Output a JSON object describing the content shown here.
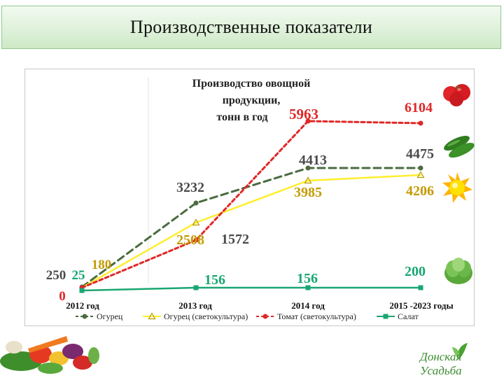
{
  "header": {
    "title": "Производственные показатели"
  },
  "chart_data": {
    "type": "line",
    "title": "Производство овощной продукции, тонн в год",
    "categories": [
      "2012 год",
      "2013 год",
      "2014 год",
      "2015 -2023 годы"
    ],
    "series": [
      {
        "name": "Огурец",
        "color": "#4a6b3f",
        "marker": "circle",
        "dash": "dashed",
        "values": [
          250,
          3232,
          4413,
          4475
        ]
      },
      {
        "name": "Огурец (светокультура)",
        "color": "#ffee2e",
        "marker": "triangle",
        "dash": "solid",
        "values": [
          25,
          2508,
          3985,
          4206
        ]
      },
      {
        "name": "Томат (светокультура)",
        "color": "#e02828",
        "marker": "circle",
        "dash": "dashed",
        "values": [
          180,
          1572,
          5963,
          6104
        ]
      },
      {
        "name": "Салат",
        "color": "#1aa672",
        "marker": "square",
        "dash": "solid",
        "values": [
          0,
          156,
          156,
          200
        ]
      }
    ],
    "data_labels": [
      "250",
      "25",
      "180",
      "0",
      "3232",
      "2508",
      "1572",
      "156",
      "5963",
      "4413",
      "3985",
      "156",
      "6104",
      "4475",
      "4206",
      "200"
    ],
    "ylim": [
      0,
      7000
    ],
    "legend": "bottom",
    "grid": false
  },
  "icons": [
    "tomato-icon",
    "cucumber-icon",
    "sun-icon",
    "lettuce-icon",
    "vegetables-basket-icon",
    "logo-leaf-icon"
  ],
  "logo": {
    "text": "Донская Усадьба"
  }
}
